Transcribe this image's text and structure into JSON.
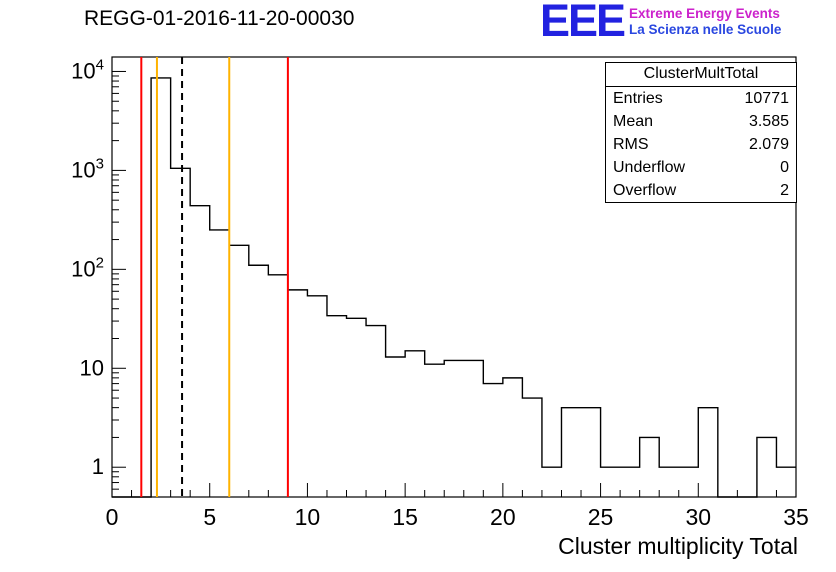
{
  "logo": {
    "acronym": "EEE",
    "line1": "Extreme Energy Events",
    "line2": "La Scienza nelle Scuole",
    "acronym_color": "#2222e0",
    "line1_color": "#cc22cc",
    "line2_color": "#2a47e0"
  },
  "stats": {
    "title": "ClusterMultTotal",
    "rows": [
      {
        "label": "Entries",
        "value": "10771"
      },
      {
        "label": "Mean",
        "value": "3.585"
      },
      {
        "label": "RMS",
        "value": "2.079"
      },
      {
        "label": "Underflow",
        "value": "0"
      },
      {
        "label": "Overflow",
        "value": "2"
      }
    ]
  },
  "chart_data": {
    "type": "bar",
    "title": "REGG-01-2016-11-20-00030",
    "xlabel": "Cluster multiplicity Total",
    "ylabel": "",
    "bin_start": 0,
    "bin_width": 1,
    "values": [
      0,
      0,
      8600,
      1050,
      440,
      250,
      175,
      110,
      88,
      62,
      54,
      34,
      32,
      27,
      13,
      15,
      11,
      12,
      12,
      7,
      8,
      5,
      1,
      4,
      4,
      1,
      1,
      2,
      1,
      1,
      4,
      0,
      0,
      2,
      1
    ],
    "xlim": [
      0,
      35
    ],
    "ylim": [
      0.5,
      14000
    ],
    "ylog": true,
    "x_ticks": [
      0,
      5,
      10,
      15,
      20,
      25,
      30,
      35
    ],
    "y_ticks": [
      1,
      10,
      100,
      1000,
      10000
    ],
    "line_color": "#000000",
    "grid": false,
    "legend": false,
    "markers": [
      {
        "x": 1.5,
        "color": "#ff0000",
        "style": "solid"
      },
      {
        "x": 2.3,
        "color": "#ffb300",
        "style": "solid"
      },
      {
        "x": 3.585,
        "color": "#000000",
        "style": "dashed"
      },
      {
        "x": 6.0,
        "color": "#ffb300",
        "style": "solid"
      },
      {
        "x": 9.0,
        "color": "#ff0000",
        "style": "solid"
      }
    ]
  }
}
